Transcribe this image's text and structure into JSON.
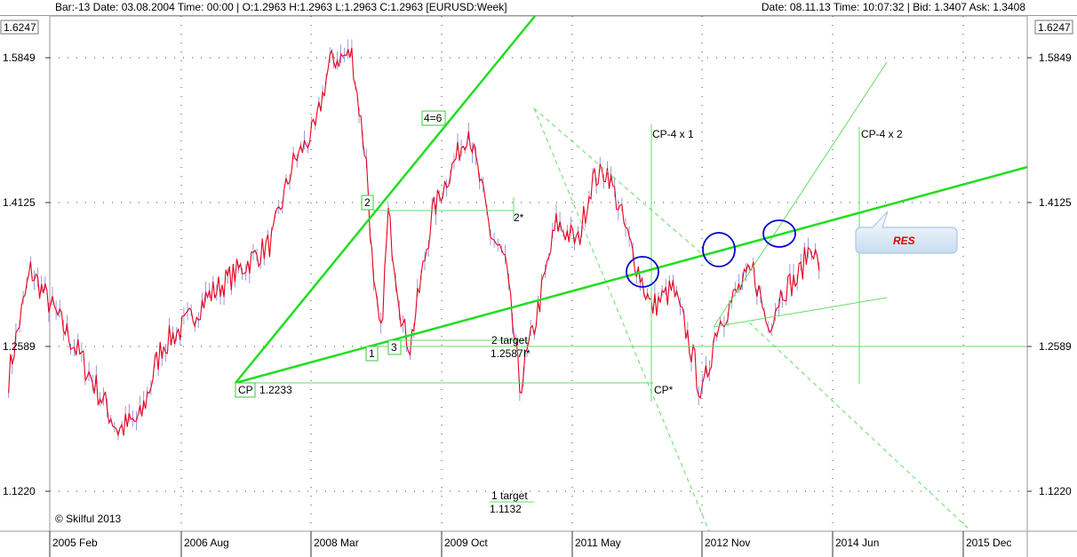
{
  "window": {
    "left_info": "Bar:-13  Date:  03.08.2004  Time:  00:00  |  O:1.2963  H:1.2963  L:1.2963  C:1.2963   [EURUSD:Week]",
    "right_info": "Date:  08.11.13  Time:  10:07:32  |  Bid:  1.3407  Ask:  1.3408"
  },
  "chart_data": {
    "type": "line",
    "symbol": "EURUSD",
    "timeframe": "Week",
    "x_tick_labels": [
      "2005 Feb",
      "2006 Aug",
      "2008 Mar",
      "2009 Oct",
      "2011 May",
      "2012 Nov",
      "2014 Jun",
      "2015 Dec"
    ],
    "y_tick_labels": [
      "1.5849",
      "1.4125",
      "1.2589",
      "1.1220"
    ],
    "y_top_label": "1.6247",
    "ylim": [
      1.08,
      1.6247
    ],
    "grid": true,
    "series": [
      {
        "color": "#e8001c",
        "x": [
          "2004-08",
          "2004-11",
          "2005-02",
          "2005-05",
          "2005-08",
          "2005-11",
          "2006-02",
          "2006-05",
          "2006-08",
          "2006-11",
          "2007-02",
          "2007-05",
          "2007-08",
          "2007-11",
          "2008-02",
          "2008-04",
          "2008-07",
          "2008-09",
          "2008-10",
          "2008-11",
          "2008-12",
          "2009-02",
          "2009-03",
          "2009-06",
          "2009-09",
          "2009-11",
          "2010-02",
          "2010-04",
          "2010-06",
          "2010-08",
          "2010-11",
          "2011-02",
          "2011-04",
          "2011-06",
          "2011-09",
          "2011-12",
          "2012-03",
          "2012-05",
          "2012-07",
          "2012-09",
          "2012-12",
          "2013-02",
          "2013-04",
          "2013-06",
          "2013-08",
          "2013-10",
          "2013-11"
        ],
        "values": [
          1.23,
          1.34,
          1.3,
          1.26,
          1.22,
          1.18,
          1.19,
          1.26,
          1.28,
          1.31,
          1.33,
          1.35,
          1.37,
          1.46,
          1.5,
          1.58,
          1.59,
          1.46,
          1.32,
          1.27,
          1.4,
          1.28,
          1.26,
          1.4,
          1.46,
          1.5,
          1.38,
          1.35,
          1.22,
          1.28,
          1.39,
          1.37,
          1.44,
          1.45,
          1.37,
          1.3,
          1.32,
          1.27,
          1.21,
          1.28,
          1.32,
          1.34,
          1.28,
          1.32,
          1.33,
          1.37,
          1.34
        ]
      }
    ],
    "annotations": {
      "labels": [
        {
          "text": "CP",
          "value": "1.2233"
        },
        {
          "text": "1"
        },
        {
          "text": "2"
        },
        {
          "text": "2*"
        },
        {
          "text": "3"
        },
        {
          "text": "4=6"
        },
        {
          "text": "2 target",
          "value": "1.2587I*"
        },
        {
          "text": "1 target",
          "value": "1.1132"
        },
        {
          "text": "CP-4 x 1"
        },
        {
          "text": "CP-4 x 2"
        },
        {
          "text": "CP*"
        }
      ],
      "callout": "RES",
      "copyright": "© Skilful 2013"
    },
    "colors": {
      "price": "#e8001c",
      "wick": "#8080d8",
      "trend": "#22dd22",
      "trend_thin": "#7ee07e",
      "circle": "#0000cc",
      "grid": "#444444",
      "callout_text": "#e00000"
    }
  }
}
